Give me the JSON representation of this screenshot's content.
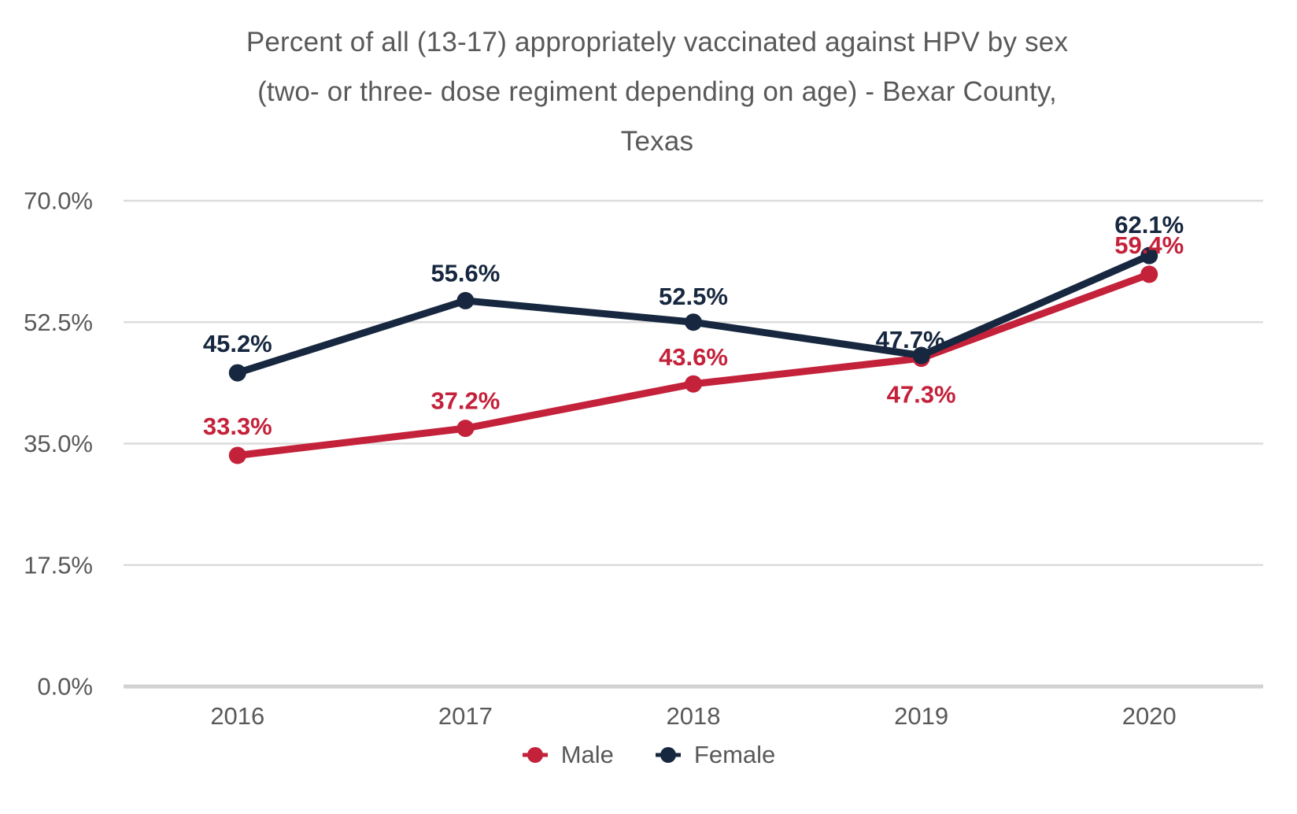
{
  "chart_data": {
    "type": "line",
    "title": "Percent of all (13-17) appropriately vaccinated against HPV by sex (two- or three- dose regiment depending on age) - Bexar County, Texas",
    "title_lines": [
      "Percent of all (13-17) appropriately vaccinated against HPV by sex",
      "(two- or three- dose regiment depending on age) - Bexar County,",
      "Texas"
    ],
    "categories": [
      "2016",
      "2017",
      "2018",
      "2019",
      "2020"
    ],
    "series": [
      {
        "name": "Male",
        "color": "#C4213A",
        "values": [
          33.3,
          37.2,
          43.6,
          47.3,
          59.4
        ]
      },
      {
        "name": "Female",
        "color": "#16273F",
        "values": [
          45.2,
          55.6,
          52.5,
          47.7,
          62.1
        ]
      }
    ],
    "y_axis": {
      "ticks": [
        "0.0%",
        "17.5%",
        "35.0%",
        "52.5%",
        "70.0%"
      ],
      "tick_values": [
        0,
        17.5,
        35,
        52.5,
        70
      ],
      "min": 0,
      "max": 70
    },
    "xlabel": "",
    "ylabel": "",
    "grid": true,
    "legend_position": "bottom",
    "data_label_format": "one_decimal_percent",
    "colors": {
      "axis_text": "#595959",
      "title_text": "#595959",
      "gridline": "#DCDCDC",
      "baseline": "#D2D2D2",
      "background": "#FFFFFF"
    }
  }
}
